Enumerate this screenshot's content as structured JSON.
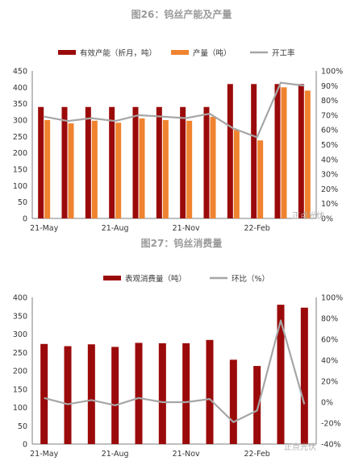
{
  "charts": [
    {
      "type": "bar",
      "title": "图26：钨丝产能及产量",
      "categories": [
        "21-May",
        "",
        "",
        "21-Aug",
        "",
        "",
        "21-Nov",
        "",
        "",
        "22-Feb",
        "",
        ""
      ],
      "x_labels": [
        "21-May",
        "21-Aug",
        "21-Nov",
        "22-Feb"
      ],
      "series": [
        {
          "name": "有效产能（折月，吨）",
          "kind": "bar",
          "axis": "left",
          "color": "#9b0a0a",
          "values": [
            340,
            340,
            340,
            340,
            340,
            340,
            340,
            340,
            410,
            410,
            410,
            410
          ]
        },
        {
          "name": "产量（吨）",
          "kind": "bar",
          "axis": "left",
          "color": "#f0832f",
          "values": [
            300,
            290,
            298,
            292,
            305,
            300,
            298,
            310,
            270,
            238,
            400,
            390
          ]
        },
        {
          "name": "开工率",
          "kind": "line",
          "axis": "right",
          "color": "#a6a6a6",
          "values": [
            0.69,
            0.66,
            0.68,
            0.66,
            0.7,
            0.69,
            0.68,
            0.71,
            0.61,
            0.55,
            0.92,
            0.9
          ]
        }
      ],
      "left_axis": {
        "min": 0,
        "max": 450,
        "step": 50,
        "ticks": [
          "0",
          "50",
          "100",
          "150",
          "200",
          "250",
          "300",
          "350",
          "400",
          "450"
        ]
      },
      "right_axis": {
        "min": 0,
        "max": 1.0,
        "step": 0.1,
        "ticks": [
          "0%",
          "10%",
          "20%",
          "30%",
          "40%",
          "50%",
          "60%",
          "70%",
          "80%",
          "90%",
          "100%"
        ]
      },
      "legend_position": "top",
      "watermark": "正点光伏"
    },
    {
      "type": "bar",
      "title": "图27：钨丝消费量",
      "categories": [
        "21-May",
        "",
        "",
        "21-Aug",
        "",
        "",
        "21-Nov",
        "",
        "",
        "22-Feb",
        "",
        ""
      ],
      "x_labels": [
        "21-May",
        "21-Aug",
        "21-Nov",
        "22-Feb"
      ],
      "series": [
        {
          "name": "表观消费量（吨）",
          "kind": "bar",
          "axis": "left",
          "color": "#9b0a0a",
          "values": [
            273,
            267,
            272,
            265,
            276,
            275,
            275,
            284,
            230,
            213,
            380,
            372
          ]
        },
        {
          "name": "环比（%）",
          "kind": "line",
          "axis": "right",
          "color": "#a6a6a6",
          "values": [
            0.04,
            -0.02,
            0.02,
            -0.03,
            0.04,
            0.0,
            0.0,
            0.03,
            -0.19,
            -0.08,
            0.78,
            -0.02
          ]
        }
      ],
      "left_axis": {
        "min": 0,
        "max": 400,
        "step": 50,
        "ticks": [
          "0",
          "50",
          "100",
          "150",
          "200",
          "250",
          "300",
          "350",
          "400"
        ]
      },
      "right_axis": {
        "min": -0.4,
        "max": 1.0,
        "step": 0.2,
        "ticks": [
          "-40%",
          "-20%",
          "0%",
          "20%",
          "40%",
          "60%",
          "80%",
          "100%"
        ]
      },
      "legend_position": "top",
      "watermark": "正点光伏"
    }
  ]
}
